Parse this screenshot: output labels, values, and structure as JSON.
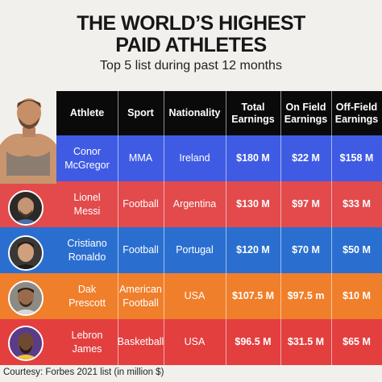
{
  "title_line1": "THE WORLD’S HIGHEST",
  "title_line2": "PAID ATHLETES",
  "subtitle": "Top 5 list during past 12 months",
  "footer": "Courtesy: Forbes 2021 list (in million $)",
  "headers": [
    "Athlete",
    "Sport",
    "Nationality",
    "Total\nEarnings",
    "On Field\nEarnings",
    "Off-Field\nEarnings"
  ],
  "colors": {
    "header": "#0a0a0a",
    "rows": [
      "#3f5be4",
      "#e24a4c",
      "#2a6fd0",
      "#f07f2b",
      "#e33f3f"
    ]
  },
  "chart_data": {
    "type": "table",
    "columns": [
      "Athlete",
      "Sport",
      "Nationality",
      "Total Earnings",
      "On Field Earnings",
      "Off-Field Earnings"
    ],
    "rows": [
      {
        "athlete": "Conor\nMcGregor",
        "sport": "MMA",
        "nationality": "Ireland",
        "total": "$180 M",
        "on_field": "$22 M",
        "off_field": "$158 M"
      },
      {
        "athlete": "Lionel\nMessi",
        "sport": "Football",
        "nationality": "Argentina",
        "total": "$130 M",
        "on_field": "$97 M",
        "off_field": "$33 M"
      },
      {
        "athlete": "Cristiano\nRonaldo",
        "sport": "Football",
        "nationality": "Portugal",
        "total": "$120 M",
        "on_field": "$70 M",
        "off_field": "$50 M"
      },
      {
        "athlete": "Dak\nPrescott",
        "sport": "American\nFootball",
        "nationality": "USA",
        "total": "$107.5 M",
        "on_field": "$97.5 m",
        "off_field": "$10 M"
      },
      {
        "athlete": "Lebron\nJames",
        "sport": "Basketball",
        "nationality": "USA",
        "total": "$96.5 M",
        "on_field": "$31.5 M",
        "off_field": "$65 M"
      }
    ]
  }
}
